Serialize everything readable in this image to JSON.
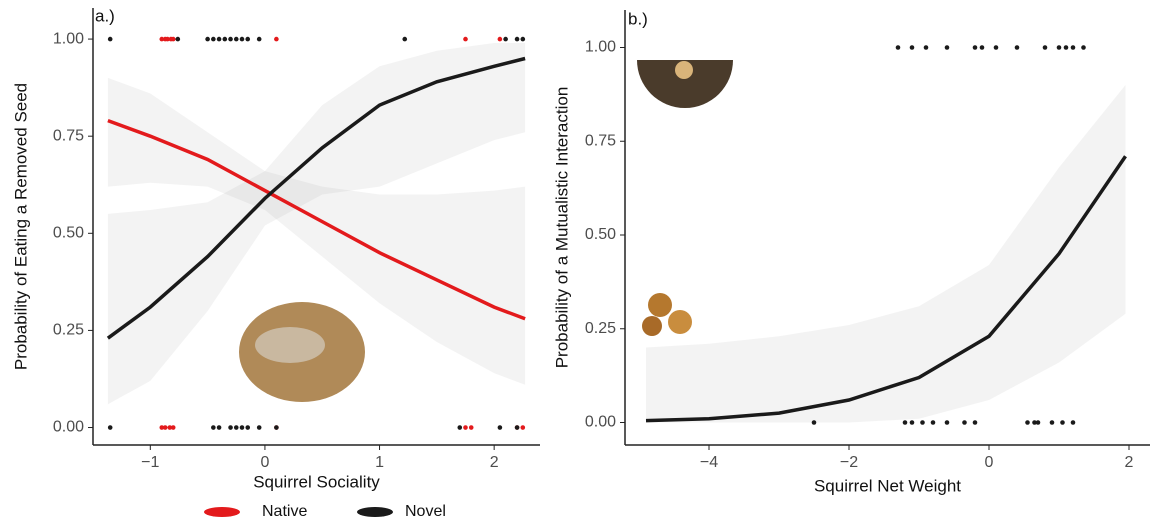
{
  "chart_data": [
    {
      "type": "line",
      "panel_label": "a.)",
      "xlabel": "Squirrel Sociality",
      "ylabel": "Probability of Eating a Removed Seed",
      "xlim": [
        -1.5,
        2.4
      ],
      "ylim": [
        -0.045,
        1.08
      ],
      "xticks": [
        {
          "value": -1,
          "label": "−1"
        },
        0,
        1,
        2
      ],
      "yticks": [
        {
          "value": 0,
          "label": "0.00"
        },
        {
          "value": 0.25,
          "label": "0.25"
        },
        {
          "value": 0.5,
          "label": "0.50"
        },
        {
          "value": 0.75,
          "label": "0.75"
        },
        {
          "value": 1,
          "label": "1.00"
        }
      ],
      "series": [
        {
          "name": "Native",
          "color": "#e31a1c",
          "x": [
            -1.37,
            -1,
            -0.5,
            0,
            0.5,
            1,
            1.5,
            2,
            2.27
          ],
          "values": [
            0.79,
            0.75,
            0.69,
            0.61,
            0.53,
            0.45,
            0.38,
            0.31,
            0.28
          ],
          "lower": [
            0.62,
            0.63,
            0.62,
            0.56,
            0.44,
            0.32,
            0.22,
            0.14,
            0.11
          ],
          "upper": [
            0.9,
            0.86,
            0.76,
            0.66,
            0.62,
            0.6,
            0.6,
            0.61,
            0.62
          ],
          "points": {
            "x": [
              -0.9,
              -0.87,
              -0.85,
              -0.82,
              -0.8,
              0.1,
              1.75,
              2.05,
              -0.9,
              -0.87,
              -0.83,
              -0.8,
              0.1,
              1.75,
              1.8,
              2.2,
              2.25
            ],
            "values": [
              1,
              1,
              1,
              1,
              1,
              1,
              1,
              1,
              0,
              0,
              0,
              0,
              0,
              0,
              0,
              0,
              0
            ]
          }
        },
        {
          "name": "Novel",
          "color": "#1a1a1a",
          "x": [
            -1.37,
            -1,
            -0.5,
            0,
            0.5,
            1,
            1.5,
            2,
            2.27
          ],
          "values": [
            0.23,
            0.31,
            0.44,
            0.59,
            0.72,
            0.83,
            0.89,
            0.93,
            0.95
          ],
          "lower": [
            0.06,
            0.12,
            0.3,
            0.52,
            0.6,
            0.62,
            0.68,
            0.74,
            0.76
          ],
          "upper": [
            0.55,
            0.56,
            0.58,
            0.66,
            0.83,
            0.93,
            0.97,
            0.99,
            0.99
          ],
          "points": {
            "x": [
              -1.35,
              -0.76,
              -0.5,
              -0.45,
              -0.4,
              -0.35,
              -0.3,
              -0.25,
              -0.2,
              -0.15,
              -0.05,
              1.22,
              2.1,
              2.2,
              2.25,
              -1.35,
              -0.45,
              -0.4,
              -0.3,
              -0.25,
              -0.2,
              -0.15,
              -0.05,
              0.1,
              1.7,
              2.05,
              2.2
            ],
            "values": [
              1,
              1,
              1,
              1,
              1,
              1,
              1,
              1,
              1,
              1,
              1,
              1,
              1,
              1,
              1,
              0,
              0,
              0,
              0,
              0,
              0,
              0,
              0,
              0,
              0,
              0,
              0
            ]
          }
        }
      ]
    },
    {
      "type": "line",
      "panel_label": "b.)",
      "xlabel": "Squirrel Net Weight",
      "ylabel": "Probability of a Mutualistic Interaction",
      "xlim": [
        -5.2,
        2.3
      ],
      "ylim": [
        -0.06,
        1.1
      ],
      "xticks": [
        {
          "value": -4,
          "label": "−4"
        },
        {
          "value": -2,
          "label": "−2"
        },
        0,
        2
      ],
      "yticks": [
        {
          "value": 0,
          "label": "0.00"
        },
        {
          "value": 0.25,
          "label": "0.25"
        },
        {
          "value": 0.5,
          "label": "0.50"
        },
        {
          "value": 0.75,
          "label": "0.75"
        },
        {
          "value": 1,
          "label": "1.00"
        }
      ],
      "series": [
        {
          "color": "#1a1a1a",
          "x": [
            -4.9,
            -4,
            -3,
            -2,
            -1,
            0,
            1,
            1.95
          ],
          "values": [
            0.005,
            0.01,
            0.025,
            0.06,
            0.12,
            0.23,
            0.45,
            0.71
          ],
          "lower": [
            0,
            0,
            0,
            0,
            0.01,
            0.06,
            0.16,
            0.29
          ],
          "upper": [
            0.2,
            0.21,
            0.23,
            0.26,
            0.31,
            0.42,
            0.68,
            0.9
          ],
          "points": {
            "x": [
              -1.3,
              -1.1,
              -0.9,
              -0.6,
              -0.2,
              -0.1,
              0.1,
              0.4,
              0.8,
              1,
              1.1,
              1.2,
              1.35,
              -2.5,
              -1.2,
              -1.1,
              -0.95,
              -0.8,
              -0.6,
              -0.35,
              -0.2,
              0.55,
              0.65,
              0.7,
              0.9,
              1.05,
              1.2
            ],
            "values": [
              1,
              1,
              1,
              1,
              1,
              1,
              1,
              1,
              1,
              1,
              1,
              1,
              1,
              0,
              0,
              0,
              0,
              0,
              0,
              0,
              0,
              0,
              0,
              0,
              0,
              0,
              0
            ]
          }
        }
      ]
    }
  ]
}
